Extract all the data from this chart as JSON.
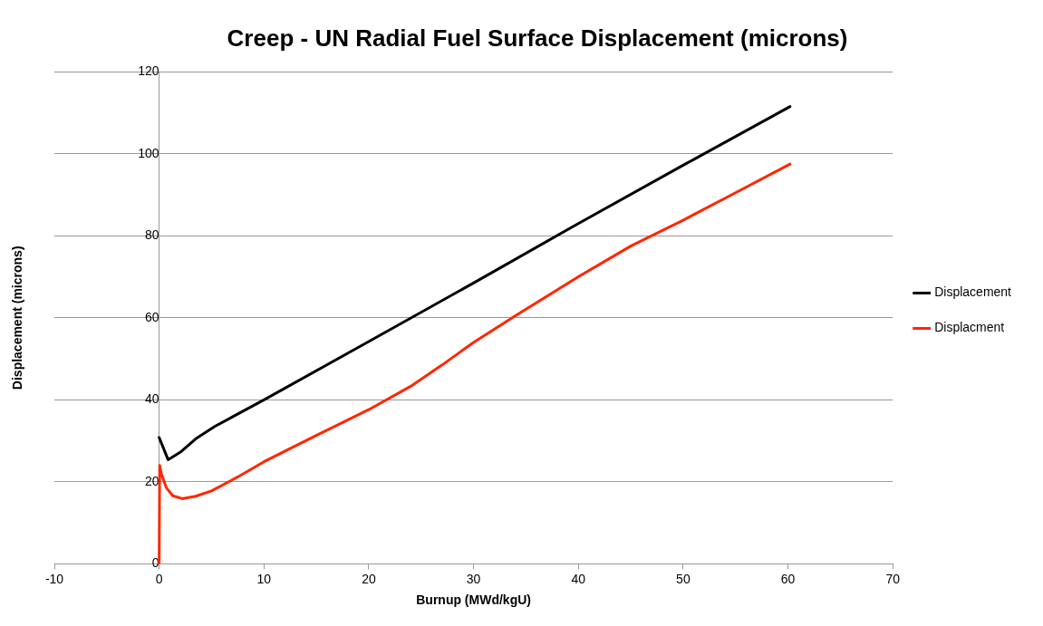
{
  "chart_data": {
    "type": "line",
    "title": "Creep - UN Radial Fuel Surface Displacement (microns)",
    "xlabel": "Burnup (MWd/kgU)",
    "ylabel": "Displacement (microns)",
    "xlim": [
      -10,
      70
    ],
    "xticks": [
      -10,
      0,
      10,
      20,
      30,
      40,
      50,
      60,
      70
    ],
    "ylim": [
      0,
      120
    ],
    "yticks": [
      0,
      20,
      40,
      60,
      80,
      100,
      120
    ],
    "grid": "y",
    "legend": "right",
    "marker": "none",
    "line_style": "solid",
    "series": [
      {
        "name": "Displacement",
        "color": "#000000",
        "x": [
          0,
          0.85,
          2,
          3.5,
          5.3,
          10,
          20,
          30,
          40,
          50,
          60.2
        ],
        "values": [
          30.8,
          25.4,
          27.2,
          30.5,
          33.5,
          40,
          54.2,
          68.5,
          83,
          97.2,
          111.5
        ]
      },
      {
        "name": "Displacment",
        "color": "#ff2600",
        "x": [
          0,
          0.05,
          0.2,
          0.7,
          1.3,
          2.2,
          3.5,
          5,
          7.5,
          10,
          15,
          20,
          24,
          27,
          30,
          34,
          40,
          45,
          50,
          55,
          60.2
        ],
        "values": [
          0,
          24,
          22,
          18.5,
          16.6,
          15.9,
          16.5,
          17.8,
          21.2,
          24.9,
          31.3,
          37.6,
          43.3,
          48.5,
          54,
          60.5,
          70,
          77.5,
          83.8,
          90.5,
          97.5
        ]
      }
    ]
  }
}
